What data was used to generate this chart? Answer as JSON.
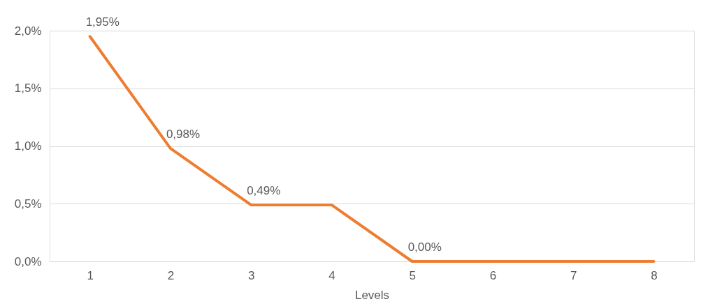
{
  "chart_data": {
    "type": "line",
    "xlabel": "Levels",
    "categories": [
      "1",
      "2",
      "3",
      "4",
      "5",
      "6",
      "7",
      "8"
    ],
    "series": [
      {
        "color": "#ed7d31",
        "values": [
          1.95,
          0.98,
          0.49,
          0.49,
          0,
          0,
          0,
          0
        ],
        "value_labels": [
          "1,95%",
          "0,98%",
          "0,49%",
          null,
          "0,00%",
          null,
          null,
          null
        ]
      }
    ],
    "ylim": [
      0,
      2
    ],
    "yticks": [
      {
        "value": 0,
        "label": "0,0%"
      },
      {
        "value": 0.5,
        "label": "0,5%"
      },
      {
        "value": 1,
        "label": "1,0%"
      },
      {
        "value": 1.5,
        "label": "1,5%"
      },
      {
        "value": 2,
        "label": "2,0%"
      }
    ],
    "grid": "y",
    "marker": "none",
    "line_style": "solid"
  }
}
